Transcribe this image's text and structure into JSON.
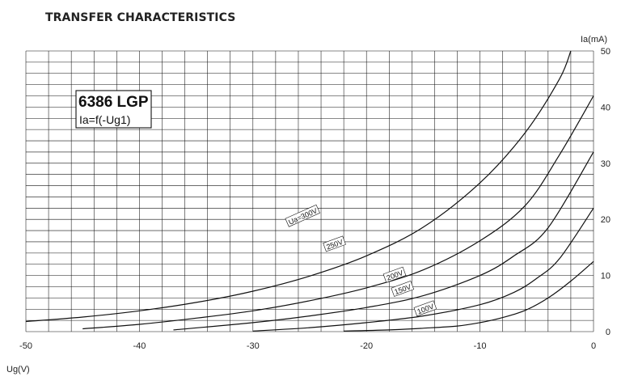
{
  "title": "TRANSFER CHARACTERISTICS",
  "tube": {
    "name": "6386 LGP",
    "formula": "Ia=f(-Ug1)"
  },
  "chart_data": {
    "type": "line",
    "title": "TRANSFER CHARACTERISTICS",
    "xlabel": "Ug(V)",
    "ylabel": "Ia(mA)",
    "xlim": [
      -50,
      0
    ],
    "ylim": [
      0,
      50
    ],
    "x_ticks": [
      -50,
      -40,
      -30,
      -20,
      -10,
      0
    ],
    "y_ticks": [
      0,
      10,
      20,
      30,
      40,
      50
    ],
    "grid": true,
    "series": [
      {
        "name": "Ua=300V",
        "x": [
          -50,
          -45,
          -40,
          -35,
          -30,
          -25,
          -20,
          -15,
          -10,
          -6,
          -3,
          -2
        ],
        "y": [
          1.8,
          2.6,
          3.7,
          5.2,
          7.2,
          9.9,
          13.5,
          18.6,
          26.5,
          35.5,
          45.0,
          50.0
        ]
      },
      {
        "name": "250V",
        "x": [
          -45,
          -40,
          -35,
          -30,
          -25,
          -20,
          -15,
          -10,
          -6,
          -3,
          0
        ],
        "y": [
          0.5,
          1.3,
          2.4,
          3.7,
          5.5,
          7.8,
          11.0,
          16.2,
          22.5,
          31.5,
          42.0
        ]
      },
      {
        "name": "200V",
        "x": [
          -37,
          -30,
          -25,
          -20,
          -15,
          -10,
          -7,
          -4,
          0
        ],
        "y": [
          0.3,
          1.6,
          2.8,
          4.3,
          6.4,
          10.0,
          13.5,
          18.5,
          32.0
        ]
      },
      {
        "name": "150V",
        "x": [
          -30,
          -25,
          -20,
          -15,
          -10,
          -7,
          -5,
          -3,
          0
        ],
        "y": [
          0.1,
          0.7,
          1.6,
          2.8,
          4.8,
          7.0,
          9.5,
          13.0,
          22.0
        ]
      },
      {
        "name": "100V",
        "x": [
          -22,
          -18,
          -15,
          -12,
          -10,
          -8,
          -6,
          -4,
          -2,
          0
        ],
        "y": [
          0.1,
          0.3,
          0.6,
          1.0,
          1.6,
          2.5,
          3.8,
          6.0,
          9.0,
          12.5
        ]
      }
    ],
    "curve_labels": [
      {
        "text": "Ua=300V",
        "series": "Ua=300V",
        "x": -25.6,
        "y": 20.5,
        "angle": -24
      },
      {
        "text": "250V",
        "series": "250V",
        "x": -22.8,
        "y": 15.5,
        "angle": -20
      },
      {
        "text": "200V",
        "series": "200V",
        "x": -17.5,
        "y": 10.0,
        "angle": -20
      },
      {
        "text": "150V",
        "series": "150V",
        "x": -16.8,
        "y": 7.5,
        "angle": -20
      },
      {
        "text": "100V",
        "series": "100V",
        "x": -14.8,
        "y": 4.0,
        "angle": -20
      }
    ]
  }
}
